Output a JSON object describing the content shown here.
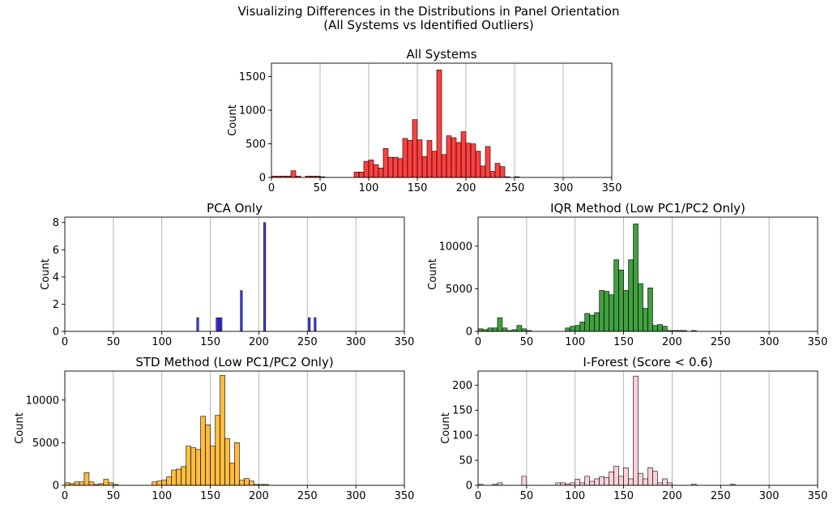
{
  "figure": {
    "suptitle_line1": "Visualizing Differences in the Distributions in Panel Orientation",
    "suptitle_line2": "(All Systems vs Identified Outliers)"
  },
  "chart_data": [
    {
      "id": "all-systems",
      "type": "bar",
      "title": "All Systems",
      "xlabel": "",
      "ylabel": "Count",
      "xlim": [
        0,
        350
      ],
      "ylim": [
        0,
        1700
      ],
      "xticks": [
        0,
        50,
        100,
        150,
        200,
        250,
        300,
        350
      ],
      "yticks": [
        0,
        500,
        1000,
        1500
      ],
      "grid": "x",
      "color": "#ff0000",
      "bin_width": 5,
      "bins": [
        [
          0,
          20
        ],
        [
          5,
          20
        ],
        [
          10,
          20
        ],
        [
          15,
          20
        ],
        [
          20,
          100
        ],
        [
          25,
          20
        ],
        [
          35,
          20
        ],
        [
          40,
          20
        ],
        [
          45,
          20
        ],
        [
          50,
          10
        ],
        [
          85,
          80
        ],
        [
          90,
          80
        ],
        [
          95,
          240
        ],
        [
          100,
          260
        ],
        [
          105,
          190
        ],
        [
          110,
          140
        ],
        [
          115,
          430
        ],
        [
          120,
          300
        ],
        [
          125,
          300
        ],
        [
          130,
          280
        ],
        [
          135,
          580
        ],
        [
          140,
          550
        ],
        [
          145,
          860
        ],
        [
          150,
          560
        ],
        [
          155,
          310
        ],
        [
          160,
          550
        ],
        [
          165,
          390
        ],
        [
          170,
          1600
        ],
        [
          175,
          340
        ],
        [
          180,
          620
        ],
        [
          185,
          590
        ],
        [
          190,
          520
        ],
        [
          195,
          680
        ],
        [
          200,
          510
        ],
        [
          205,
          500
        ],
        [
          210,
          390
        ],
        [
          215,
          170
        ],
        [
          220,
          460
        ],
        [
          225,
          90
        ],
        [
          230,
          210
        ],
        [
          235,
          160
        ],
        [
          240,
          10
        ],
        [
          250,
          10
        ]
      ]
    },
    {
      "id": "pca-only",
      "type": "bar",
      "title": "PCA Only",
      "xlabel": "",
      "ylabel": "Count",
      "xlim": [
        0,
        350
      ],
      "ylim": [
        0,
        8.4
      ],
      "xticks": [
        0,
        50,
        100,
        150,
        200,
        250,
        300,
        350
      ],
      "yticks": [
        0,
        2,
        4,
        6,
        8
      ],
      "grid": "x",
      "color": "#0000ff",
      "bin_width": 2,
      "bins": [
        [
          136,
          1
        ],
        [
          156,
          1
        ],
        [
          158,
          1
        ],
        [
          160,
          1
        ],
        [
          181,
          3
        ],
        [
          205,
          8
        ],
        [
          251,
          1
        ],
        [
          257,
          1
        ]
      ]
    },
    {
      "id": "iqr-method",
      "type": "bar",
      "title": "IQR Method (Low PC1/PC2 Only)",
      "xlabel": "",
      "ylabel": "Count",
      "xlim": [
        0,
        350
      ],
      "ylim": [
        0,
        13400
      ],
      "xticks": [
        0,
        50,
        100,
        150,
        200,
        250,
        300,
        350
      ],
      "yticks": [
        0,
        5000,
        10000
      ],
      "grid": "x",
      "color": "#008000",
      "bin_width": 5,
      "bins": [
        [
          0,
          300
        ],
        [
          5,
          200
        ],
        [
          10,
          400
        ],
        [
          15,
          400
        ],
        [
          20,
          1600
        ],
        [
          25,
          400
        ],
        [
          30,
          100
        ],
        [
          35,
          200
        ],
        [
          40,
          700
        ],
        [
          45,
          300
        ],
        [
          50,
          100
        ],
        [
          90,
          400
        ],
        [
          95,
          600
        ],
        [
          100,
          700
        ],
        [
          105,
          1100
        ],
        [
          110,
          2100
        ],
        [
          115,
          1900
        ],
        [
          120,
          2200
        ],
        [
          125,
          4800
        ],
        [
          130,
          4700
        ],
        [
          135,
          4300
        ],
        [
          140,
          8400
        ],
        [
          145,
          7200
        ],
        [
          150,
          4800
        ],
        [
          155,
          8400
        ],
        [
          160,
          12600
        ],
        [
          165,
          5600
        ],
        [
          170,
          2700
        ],
        [
          175,
          5100
        ],
        [
          180,
          700
        ],
        [
          185,
          800
        ],
        [
          190,
          600
        ],
        [
          195,
          100
        ],
        [
          200,
          100
        ],
        [
          205,
          100
        ],
        [
          210,
          100
        ],
        [
          220,
          100
        ]
      ]
    },
    {
      "id": "std-method",
      "type": "bar",
      "title": "STD Method (Low PC1/PC2 Only)",
      "xlabel": "",
      "ylabel": "Count",
      "xlim": [
        0,
        350
      ],
      "ylim": [
        0,
        13400
      ],
      "xticks": [
        0,
        50,
        100,
        150,
        200,
        250,
        300,
        350
      ],
      "yticks": [
        0,
        5000,
        10000
      ],
      "grid": "x",
      "color": "#ffa500",
      "bin_width": 5,
      "bins": [
        [
          0,
          300
        ],
        [
          5,
          200
        ],
        [
          10,
          400
        ],
        [
          15,
          400
        ],
        [
          20,
          1500
        ],
        [
          25,
          400
        ],
        [
          30,
          100
        ],
        [
          35,
          200
        ],
        [
          40,
          700
        ],
        [
          45,
          300
        ],
        [
          50,
          100
        ],
        [
          90,
          400
        ],
        [
          95,
          500
        ],
        [
          100,
          600
        ],
        [
          105,
          1000
        ],
        [
          110,
          1800
        ],
        [
          115,
          1900
        ],
        [
          120,
          2200
        ],
        [
          125,
          4600
        ],
        [
          130,
          4400
        ],
        [
          135,
          4200
        ],
        [
          140,
          8100
        ],
        [
          145,
          7100
        ],
        [
          150,
          4600
        ],
        [
          155,
          8200
        ],
        [
          160,
          12900
        ],
        [
          165,
          5500
        ],
        [
          170,
          2600
        ],
        [
          175,
          5000
        ],
        [
          180,
          600
        ],
        [
          185,
          800
        ],
        [
          190,
          500
        ],
        [
          195,
          100
        ],
        [
          200,
          100
        ],
        [
          205,
          100
        ]
      ]
    },
    {
      "id": "i-forest",
      "type": "bar",
      "title": "I-Forest (Score < 0.6)",
      "xlabel": "",
      "ylabel": "Count",
      "xlim": [
        0,
        350
      ],
      "ylim": [
        0,
        228
      ],
      "xticks": [
        0,
        50,
        100,
        150,
        200,
        250,
        300,
        350
      ],
      "yticks": [
        0,
        50,
        100,
        150,
        200
      ],
      "grid": "x",
      "color": "#ffc0cb",
      "bin_width": 5,
      "bins": [
        [
          0,
          2
        ],
        [
          15,
          2
        ],
        [
          20,
          5
        ],
        [
          45,
          18
        ],
        [
          80,
          5
        ],
        [
          85,
          5
        ],
        [
          90,
          3
        ],
        [
          95,
          5
        ],
        [
          100,
          12
        ],
        [
          105,
          5
        ],
        [
          110,
          18
        ],
        [
          115,
          8
        ],
        [
          120,
          13
        ],
        [
          125,
          17
        ],
        [
          130,
          15
        ],
        [
          135,
          27
        ],
        [
          140,
          38
        ],
        [
          145,
          18
        ],
        [
          150,
          35
        ],
        [
          155,
          13
        ],
        [
          160,
          218
        ],
        [
          165,
          24
        ],
        [
          170,
          13
        ],
        [
          175,
          35
        ],
        [
          180,
          28
        ],
        [
          185,
          5
        ],
        [
          190,
          13
        ],
        [
          195,
          5
        ],
        [
          220,
          2
        ],
        [
          260,
          2
        ]
      ]
    }
  ]
}
